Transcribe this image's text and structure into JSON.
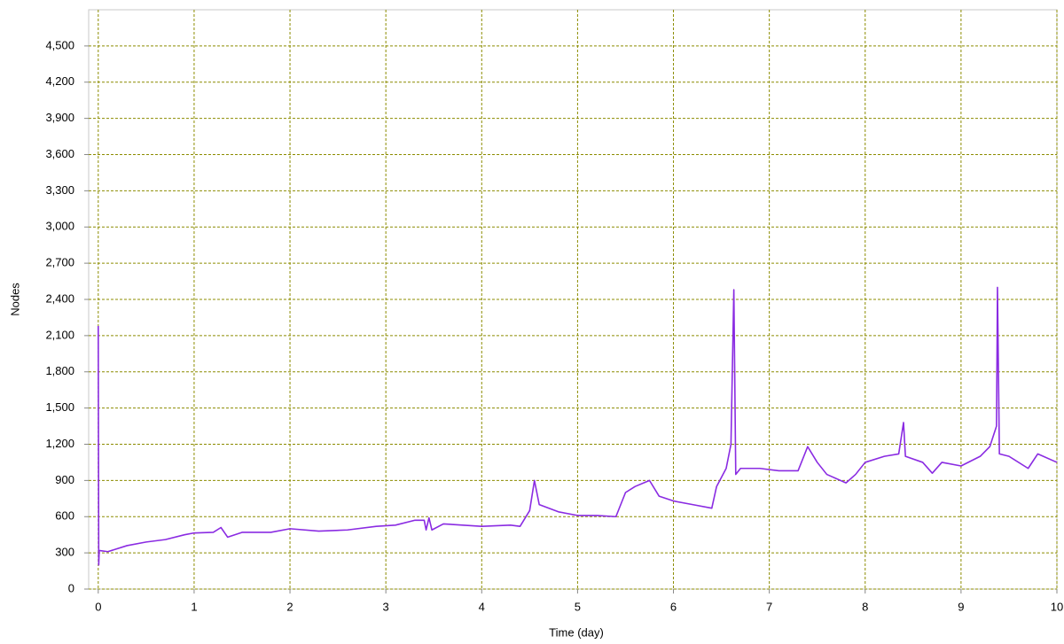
{
  "chart_data": {
    "type": "line",
    "x_label": "Time (day)",
    "y_label": "Nodes",
    "xlim": [
      -0.1,
      10
    ],
    "ylim": [
      0,
      4800
    ],
    "xticks": [
      0,
      1,
      2,
      3,
      4,
      5,
      6,
      7,
      8,
      9,
      10
    ],
    "yticks": [
      0,
      300,
      600,
      900,
      {
        "value": 1200,
        "label": "1,200"
      },
      {
        "value": 1500,
        "label": "1,500"
      },
      {
        "value": 1800,
        "label": "1,800"
      },
      {
        "value": 2100,
        "label": "2,100"
      },
      {
        "value": 2400,
        "label": "2,400"
      },
      {
        "value": 2700,
        "label": "2,700"
      },
      {
        "value": 3000,
        "label": "3,000"
      },
      {
        "value": 3300,
        "label": "3,300"
      },
      {
        "value": 3600,
        "label": "3,600"
      },
      {
        "value": 3900,
        "label": "3,900"
      },
      {
        "value": 4200,
        "label": "4,200"
      },
      {
        "value": 4500,
        "label": "4,500"
      }
    ],
    "grid": true,
    "grid_color": "#8c8c00",
    "x": [
      0,
      0.005,
      0.01,
      0.1,
      0.3,
      0.5,
      0.7,
      0.9,
      1.0,
      1.2,
      1.28,
      1.35,
      1.5,
      1.8,
      2.0,
      2.3,
      2.6,
      2.9,
      3.1,
      3.3,
      3.4,
      3.42,
      3.45,
      3.48,
      3.6,
      3.8,
      4.0,
      4.3,
      4.4,
      4.5,
      4.55,
      4.6,
      4.8,
      5.0,
      5.2,
      5.4,
      5.5,
      5.6,
      5.75,
      5.85,
      6.0,
      6.2,
      6.4,
      6.45,
      6.55,
      6.6,
      6.63,
      6.65,
      6.7,
      6.9,
      7.1,
      7.3,
      7.4,
      7.5,
      7.6,
      7.8,
      7.9,
      8.0,
      8.2,
      8.35,
      8.4,
      8.42,
      8.6,
      8.7,
      8.8,
      9.0,
      9.2,
      9.3,
      9.37,
      9.38,
      9.4,
      9.5,
      9.7,
      9.8,
      10.0
    ],
    "series": [
      {
        "color": "#8a2be2",
        "values": [
          2180,
          200,
          320,
          310,
          360,
          390,
          410,
          450,
          465,
          470,
          510,
          430,
          470,
          470,
          500,
          480,
          490,
          520,
          530,
          570,
          570,
          490,
          590,
          490,
          540,
          530,
          520,
          530,
          520,
          650,
          900,
          700,
          640,
          610,
          610,
          600,
          800,
          850,
          900,
          770,
          730,
          700,
          670,
          850,
          1000,
          1200,
          2480,
          950,
          1000,
          1000,
          980,
          980,
          1180,
          1050,
          950,
          880,
          950,
          1050,
          1100,
          1120,
          1380,
          1100,
          1050,
          960,
          1050,
          1020,
          1100,
          1180,
          1350,
          2500,
          1120,
          1100,
          1000,
          1120,
          1050
        ]
      }
    ]
  }
}
